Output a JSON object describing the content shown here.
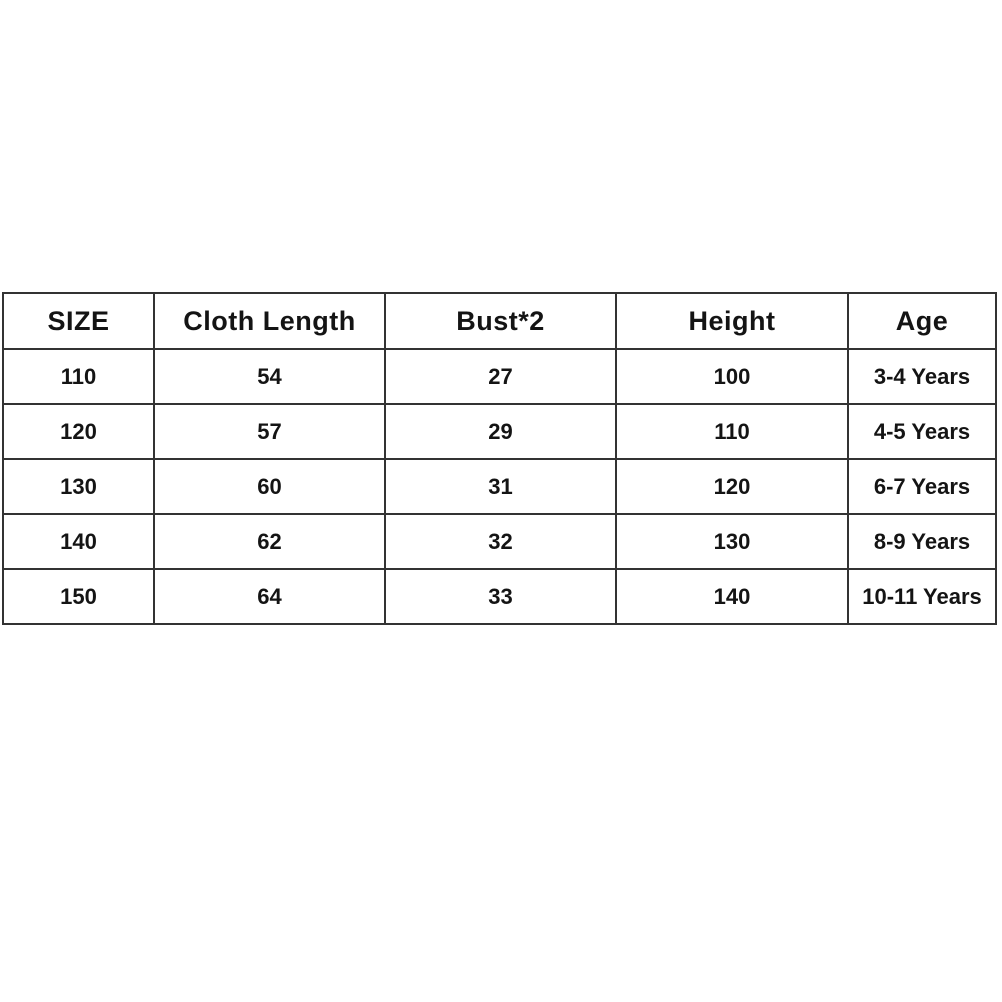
{
  "chart_data": {
    "type": "table",
    "title": "",
    "columns": [
      "SIZE",
      "Cloth Length",
      "Bust*2",
      "Height",
      "Age"
    ],
    "rows": [
      [
        "110",
        "54",
        "27",
        "100",
        "3-4 Years"
      ],
      [
        "120",
        "57",
        "29",
        "110",
        "4-5 Years"
      ],
      [
        "130",
        "60",
        "31",
        "120",
        "6-7 Years"
      ],
      [
        "140",
        "62",
        "32",
        "130",
        "8-9 Years"
      ],
      [
        "150",
        "64",
        "33",
        "140",
        "10-11 Years"
      ]
    ],
    "layout": {
      "border_color": "#333333",
      "background_color": "#ffffff",
      "text_color": "#141414",
      "grid": "on"
    }
  }
}
